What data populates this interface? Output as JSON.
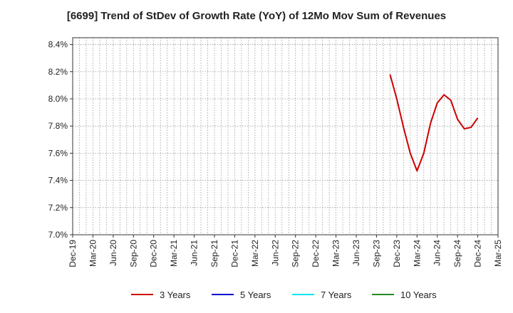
{
  "chart_data": {
    "type": "line",
    "title": "[6699]  Trend of StDev of Growth Rate (YoY) of 12Mo Mov Sum of Revenues",
    "xlabel": "",
    "ylabel": "",
    "x_ticks": [
      "Dec-19",
      "Mar-20",
      "Jun-20",
      "Sep-20",
      "Dec-20",
      "Mar-21",
      "Jun-21",
      "Sep-21",
      "Dec-21",
      "Mar-22",
      "Jun-22",
      "Sep-22",
      "Dec-22",
      "Mar-23",
      "Jun-23",
      "Sep-23",
      "Dec-23",
      "Mar-24",
      "Jun-24",
      "Sep-24",
      "Dec-24",
      "Mar-25"
    ],
    "y_ticks": [
      "7.0%",
      "7.2%",
      "7.4%",
      "7.6%",
      "7.8%",
      "8.0%",
      "8.2%",
      "8.4%"
    ],
    "ylim": [
      7.0,
      8.45
    ],
    "xlim": [
      "2019-12",
      "2025-03"
    ],
    "grid": true,
    "legend_position": "bottom",
    "series": [
      {
        "name": "3 Years",
        "color": "#cc0000",
        "points": [
          {
            "x": "2023-11",
            "y": 8.18
          },
          {
            "x": "2023-12",
            "y": 8.0
          },
          {
            "x": "2024-01",
            "y": 7.79
          },
          {
            "x": "2024-02",
            "y": 7.6
          },
          {
            "x": "2024-03",
            "y": 7.47
          },
          {
            "x": "2024-04",
            "y": 7.6
          },
          {
            "x": "2024-05",
            "y": 7.82
          },
          {
            "x": "2024-06",
            "y": 7.97
          },
          {
            "x": "2024-07",
            "y": 8.03
          },
          {
            "x": "2024-08",
            "y": 7.99
          },
          {
            "x": "2024-09",
            "y": 7.85
          },
          {
            "x": "2024-10",
            "y": 7.78
          },
          {
            "x": "2024-11",
            "y": 7.79
          },
          {
            "x": "2024-12",
            "y": 7.86
          }
        ]
      },
      {
        "name": "5 Years",
        "color": "#0000cc",
        "points": []
      },
      {
        "name": "7 Years",
        "color": "#00e5ee",
        "points": []
      },
      {
        "name": "10 Years",
        "color": "#228b22",
        "points": []
      }
    ]
  }
}
